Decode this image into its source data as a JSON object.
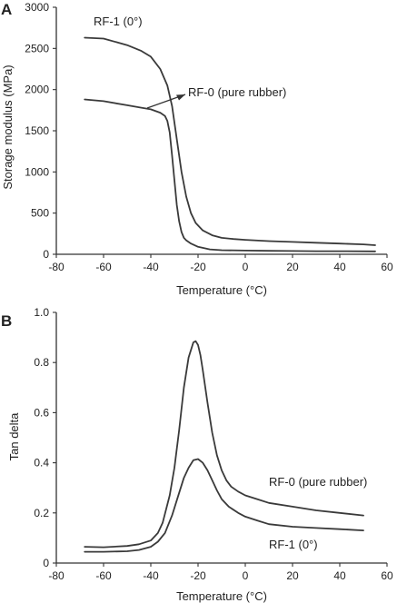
{
  "chart_data": [
    {
      "panel_label": "A",
      "type": "line",
      "xlabel": "Temperature (°C)",
      "ylabel": "Storage modulus (MPa)",
      "xlim": [
        -80,
        60
      ],
      "ylim": [
        0,
        3000
      ],
      "xticks": [
        -80,
        -60,
        -40,
        -20,
        0,
        20,
        40,
        60
      ],
      "yticks": [
        0,
        500,
        1000,
        1500,
        2000,
        2500,
        3000
      ],
      "grid": false,
      "series": [
        {
          "name": "RF-1 (0°)",
          "x": [
            -68,
            -60,
            -50,
            -44,
            -40,
            -36,
            -33,
            -31,
            -29,
            -27,
            -25,
            -23,
            -21,
            -18,
            -14,
            -10,
            -5,
            0,
            10,
            20,
            30,
            40,
            50,
            55
          ],
          "y": [
            2630,
            2620,
            2540,
            2470,
            2400,
            2250,
            2050,
            1800,
            1400,
            1000,
            700,
            500,
            380,
            290,
            230,
            200,
            185,
            175,
            160,
            150,
            140,
            130,
            120,
            110
          ]
        },
        {
          "name": "RF-0 (pure rubber)",
          "x": [
            -68,
            -60,
            -50,
            -44,
            -40,
            -36,
            -34,
            -33,
            -32,
            -31,
            -30,
            -29,
            -28,
            -27,
            -26,
            -25,
            -23,
            -20,
            -15,
            -10,
            0,
            10,
            20,
            30,
            40,
            55
          ],
          "y": [
            1880,
            1860,
            1810,
            1780,
            1760,
            1720,
            1680,
            1620,
            1480,
            1200,
            900,
            600,
            400,
            270,
            200,
            170,
            130,
            90,
            60,
            50,
            45,
            42,
            40,
            38,
            37,
            35
          ]
        }
      ],
      "annotations": [
        {
          "text": "RF-1 (0°)",
          "series": "RF-1 (0°)"
        },
        {
          "text": "RF-0 (pure rubber)",
          "series": "RF-0 (pure rubber)",
          "arrow_to": [
            -43,
            1770
          ]
        }
      ]
    },
    {
      "panel_label": "B",
      "type": "line",
      "xlabel": "Temperature (°C)",
      "ylabel": "Tan delta",
      "xlim": [
        -80,
        60
      ],
      "ylim": [
        0,
        1.0
      ],
      "xticks": [
        -80,
        -60,
        -40,
        -20,
        0,
        20,
        40,
        60
      ],
      "yticks": [
        0,
        0.2,
        0.4,
        0.6,
        0.8,
        1.0
      ],
      "ytick_labels": [
        "0",
        "0.2",
        "0.4",
        "0.6",
        "0.8",
        "1.0"
      ],
      "grid": false,
      "series": [
        {
          "name": "RF-0 (pure rubber)",
          "x": [
            -68,
            -60,
            -50,
            -45,
            -40,
            -37,
            -35,
            -32,
            -30,
            -28,
            -26,
            -24,
            -22,
            -21,
            -20,
            -19,
            -18,
            -16,
            -14,
            -12,
            -10,
            -8,
            -6,
            -3,
            0,
            5,
            10,
            20,
            30,
            40,
            50
          ],
          "y": [
            0.065,
            0.063,
            0.068,
            0.075,
            0.09,
            0.12,
            0.16,
            0.27,
            0.38,
            0.53,
            0.7,
            0.82,
            0.88,
            0.885,
            0.87,
            0.83,
            0.77,
            0.64,
            0.52,
            0.43,
            0.37,
            0.33,
            0.305,
            0.285,
            0.27,
            0.255,
            0.24,
            0.225,
            0.21,
            0.2,
            0.19
          ]
        },
        {
          "name": "RF-1 (0°)",
          "x": [
            -68,
            -60,
            -50,
            -45,
            -40,
            -37,
            -34,
            -31,
            -28,
            -26,
            -24,
            -22,
            -20,
            -18,
            -16,
            -14,
            -12,
            -10,
            -7,
            -3,
            0,
            5,
            10,
            20,
            30,
            40,
            50
          ],
          "y": [
            0.045,
            0.045,
            0.047,
            0.052,
            0.065,
            0.085,
            0.12,
            0.19,
            0.28,
            0.34,
            0.38,
            0.41,
            0.415,
            0.4,
            0.37,
            0.33,
            0.29,
            0.255,
            0.225,
            0.2,
            0.185,
            0.17,
            0.155,
            0.145,
            0.14,
            0.135,
            0.13
          ]
        }
      ],
      "annotations": [
        {
          "text": "RF-0 (pure rubber)",
          "series": "RF-0 (pure rubber)"
        },
        {
          "text": "RF-1 (0°)",
          "series": "RF-1 (0°)"
        }
      ]
    }
  ]
}
